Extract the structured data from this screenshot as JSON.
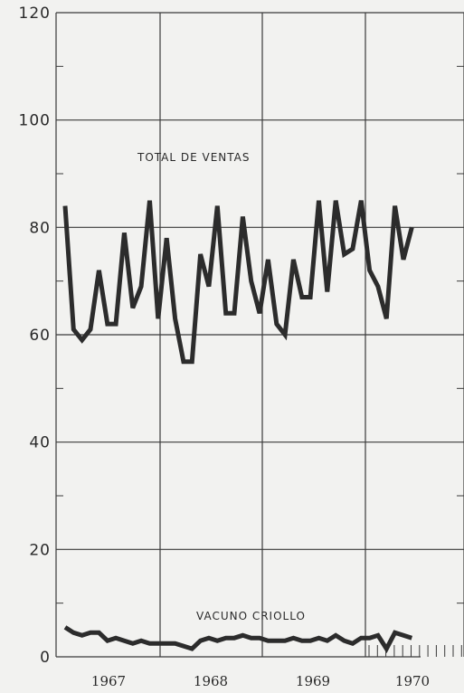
{
  "chart_data": {
    "type": "line",
    "ylim": [
      0,
      120
    ],
    "y_ticks": [
      "0",
      "20",
      "40",
      "60",
      "80",
      "100",
      "120"
    ],
    "x_tick_labels": [
      "1967",
      "1968",
      "1969",
      "1970"
    ],
    "grid": true,
    "series": [
      {
        "name": "TOTAL DE VENTAS",
        "values": [
          84,
          61,
          59,
          61,
          72,
          62,
          62,
          79,
          65,
          69,
          85,
          63,
          78,
          63,
          55,
          55,
          75,
          69,
          84,
          64,
          64,
          82,
          70,
          64,
          74,
          62,
          60,
          74,
          67,
          67,
          85,
          68,
          85,
          75,
          76,
          85,
          72,
          69,
          63,
          84,
          74,
          80
        ]
      },
      {
        "name": "VACUNO CRIOLLO",
        "values": [
          5.5,
          4.5,
          4,
          4.5,
          4.5,
          3,
          3.5,
          3,
          2.5,
          3,
          2.5,
          2.5,
          2.5,
          2.5,
          2,
          1.5,
          3,
          3.5,
          3,
          3.5,
          3.5,
          4,
          3.5,
          3.5,
          3,
          3,
          3,
          3.5,
          3,
          3,
          3.5,
          3,
          4,
          3,
          2.5,
          3.5,
          3.5,
          4,
          1.5,
          4.5,
          4,
          3.5
        ]
      }
    ]
  },
  "colors": {
    "background": "#f2f2f0",
    "lines": "#2c2c2c",
    "grid": "#3a3a3a"
  }
}
